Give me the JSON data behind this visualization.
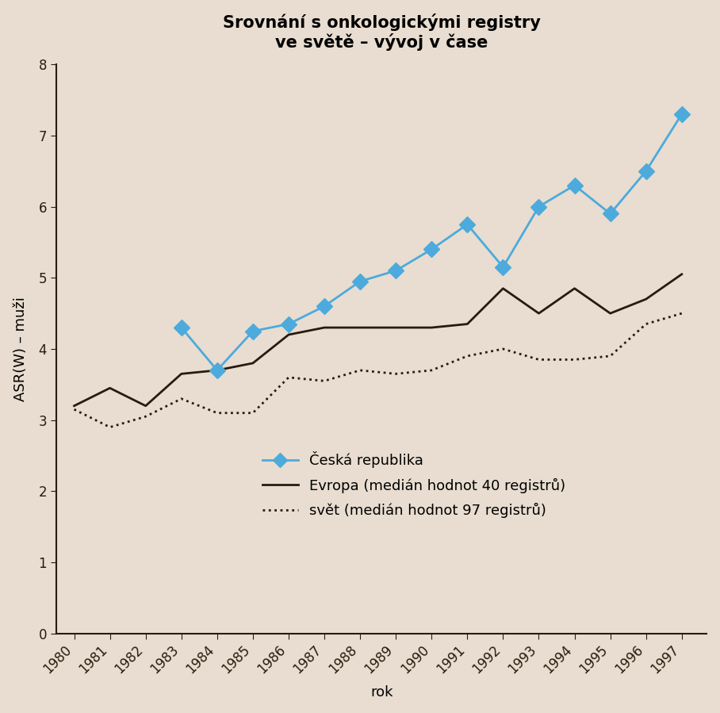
{
  "title": "Srovnání s onkologickými registry\nve světě – vývoj v čase",
  "xlabel": "rok",
  "ylabel": "ASR(W) – muži",
  "years": [
    1980,
    1981,
    1982,
    1983,
    1984,
    1985,
    1986,
    1987,
    1988,
    1989,
    1990,
    1991,
    1992,
    1993,
    1994,
    1995,
    1996,
    1997
  ],
  "cr_values": [
    null,
    null,
    null,
    4.3,
    3.7,
    4.25,
    4.35,
    4.6,
    4.95,
    5.1,
    5.4,
    5.75,
    5.15,
    6.0,
    6.3,
    5.9,
    6.5,
    7.3
  ],
  "europe_values": [
    3.2,
    3.45,
    3.2,
    3.65,
    3.7,
    3.8,
    4.2,
    4.3,
    4.3,
    4.3,
    4.3,
    4.35,
    4.85,
    4.5,
    4.85,
    4.5,
    4.7,
    5.05
  ],
  "world_values": [
    3.15,
    2.9,
    3.05,
    3.3,
    3.1,
    3.1,
    3.6,
    3.55,
    3.7,
    3.65,
    3.7,
    3.9,
    4.0,
    3.85,
    3.85,
    3.9,
    4.35,
    4.5
  ],
  "cr_color": "#4DAADC",
  "europe_color": "#2a1a0e",
  "world_color": "#2a1a0e",
  "background_color": "#e8ddd0",
  "plot_bg_color": "#e8ddd0",
  "ylim": [
    0,
    8
  ],
  "yticks": [
    0,
    1,
    2,
    3,
    4,
    5,
    6,
    7,
    8
  ],
  "legend_labels": [
    "Česká republika",
    "Evropa (medián hodnot 40 registrů)",
    "svět (medián hodnot 97 registrů)"
  ],
  "title_fontsize": 15,
  "label_fontsize": 13,
  "tick_fontsize": 12,
  "legend_fontsize": 13
}
